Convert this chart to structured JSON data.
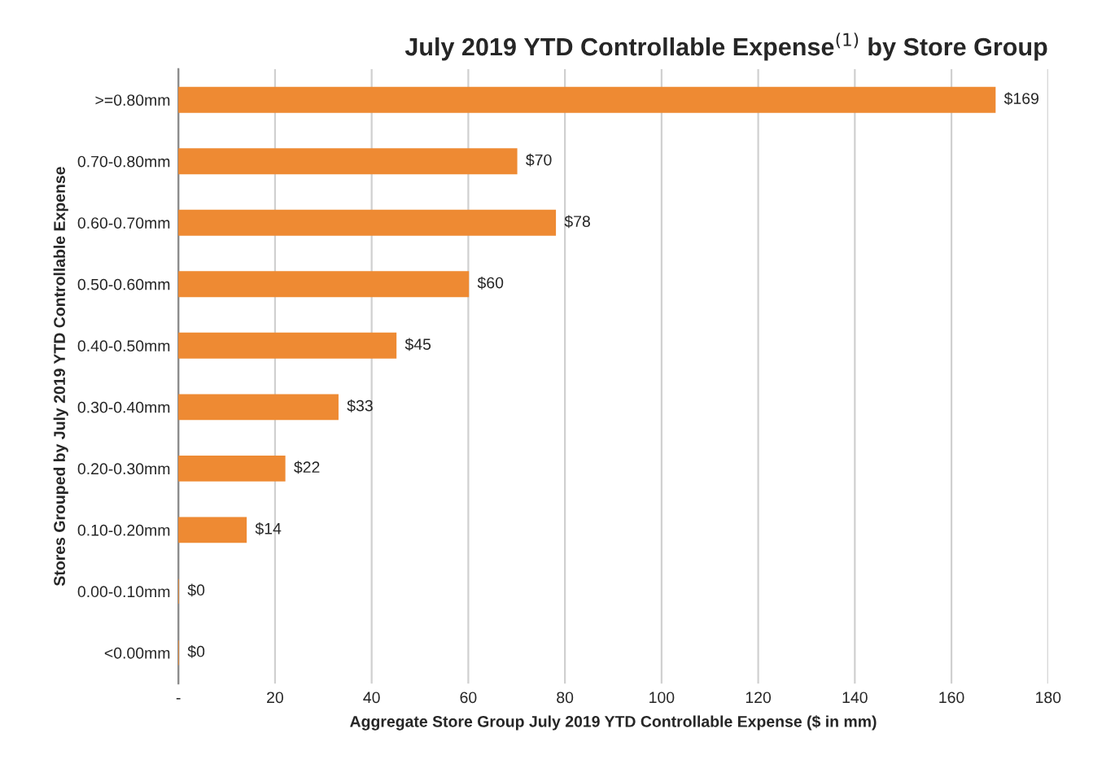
{
  "chart_data": {
    "type": "bar",
    "orientation": "horizontal",
    "title": "July 2019 YTD Controllable Expense$^{(1)}$ by Store Group",
    "xlabel": "Aggregate Store Group July 2019 YTD Controllable Expense ($ in mm)",
    "ylabel": "Stores Grouped by July 2019 YTD Controllable Expense",
    "categories": [
      ">=0.80mm",
      "0.70-0.80mm",
      "0.60-0.70mm",
      "0.50-0.60mm",
      "0.40-0.50mm",
      "0.30-0.40mm",
      "0.20-0.30mm",
      "0.10-0.20mm",
      "0.00-0.10mm",
      "<0.00mm"
    ],
    "values": [
      169,
      70,
      78,
      60,
      45,
      33,
      22,
      14,
      0,
      0
    ],
    "value_labels": [
      "$169",
      "$70",
      "$78",
      "$60",
      "$45",
      "$33",
      "$22",
      "$14",
      "$0",
      "$0"
    ],
    "color": "#ee8a33",
    "xlim": [
      0,
      180
    ],
    "xticks": [
      {
        "value": 0,
        "label": "-"
      },
      20,
      40,
      60,
      80,
      100,
      120,
      140,
      160,
      180
    ],
    "grid": "x",
    "legend": false
  }
}
